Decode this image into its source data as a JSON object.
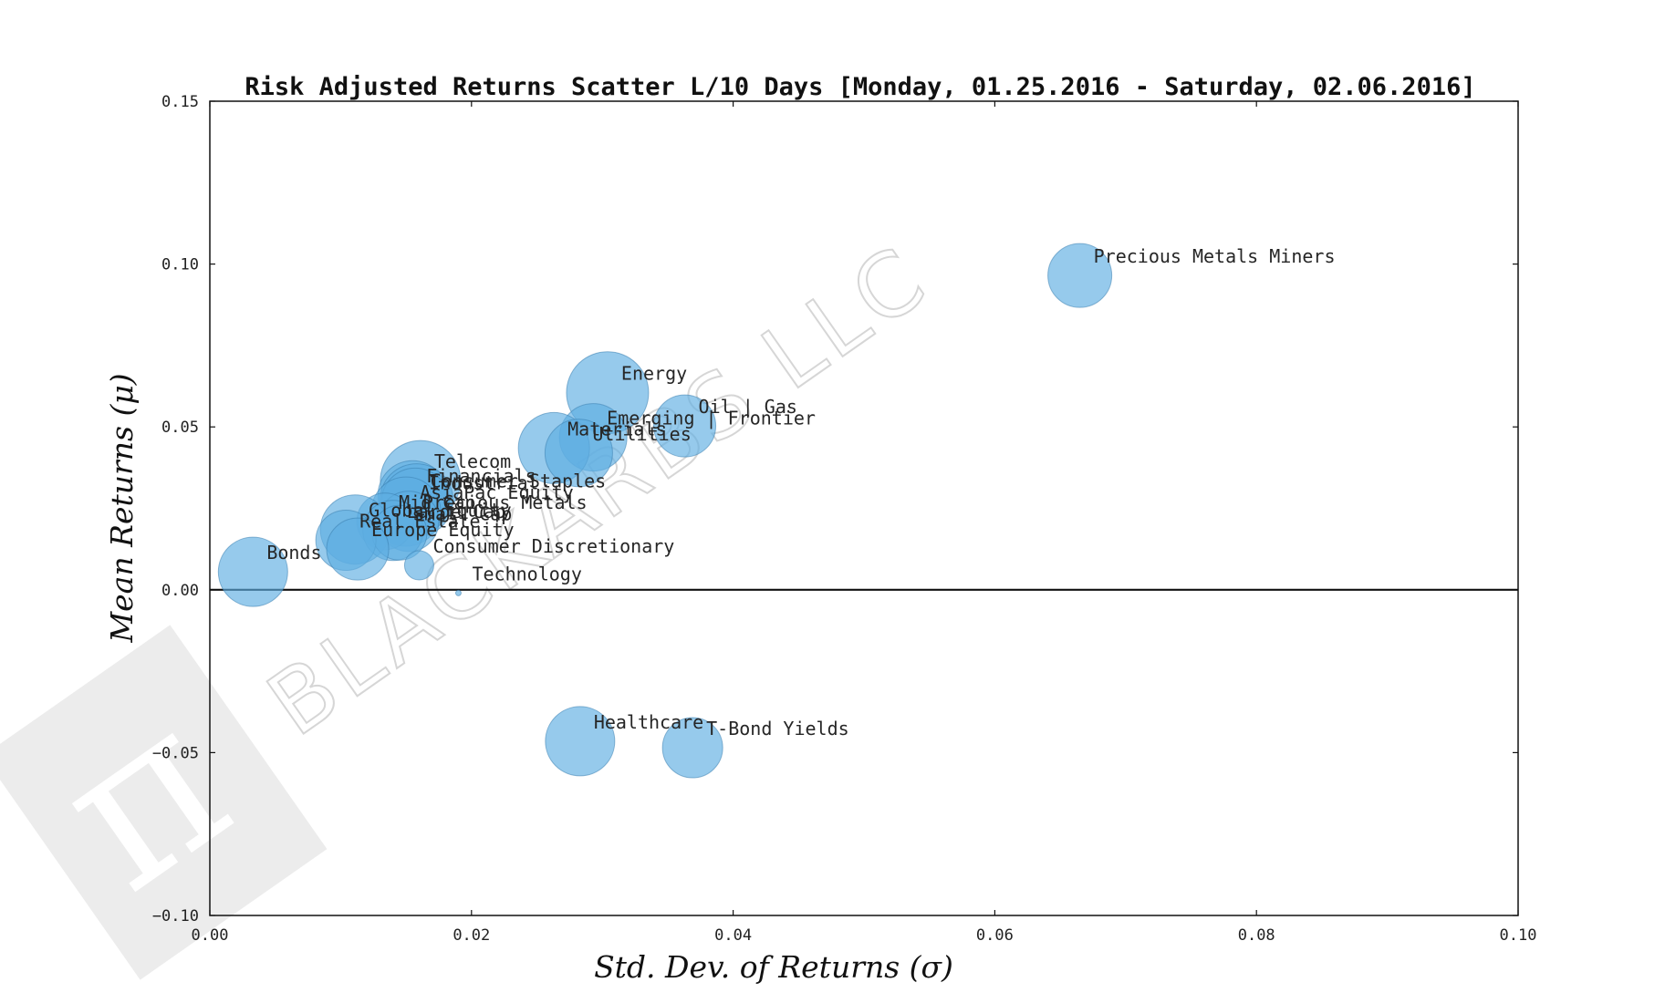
{
  "chart_data": {
    "type": "scatter",
    "title": "Risk Adjusted Returns Scatter L/10 Days [Monday, 01.25.2016 - Saturday, 02.06.2016]",
    "xlabel": "Std.  Dev.  of  Returns     (σ)",
    "ylabel": "Mean  Returns    (μ)",
    "xlim": [
      0.0,
      0.1
    ],
    "ylim": [
      -0.1,
      0.15
    ],
    "x_ticks": [
      "0.00",
      "0.02",
      "0.04",
      "0.06",
      "0.08",
      "0.10"
    ],
    "y_ticks": [
      "−0.10",
      "−0.05",
      "0.00",
      "0.05",
      "0.10",
      "0.15"
    ],
    "grid": false,
    "zero_line": 0.0,
    "marker_color": "#5DADE2",
    "marker_edge_color": "#3a7fb0",
    "watermark": "BLACKARBS LLC",
    "points": [
      {
        "label": "Precious Metals Miners",
        "x": 0.0665,
        "y": 0.0965,
        "size": 0.35
      },
      {
        "label": "Energy",
        "x": 0.0304,
        "y": 0.0605,
        "size": 0.45
      },
      {
        "label": "Oil | Gas",
        "x": 0.0363,
        "y": 0.0503,
        "size": 0.34
      },
      {
        "label": "Emerging | Frontier",
        "x": 0.0293,
        "y": 0.0468,
        "size": 0.37
      },
      {
        "label": "Materials",
        "x": 0.0263,
        "y": 0.0435,
        "size": 0.39
      },
      {
        "label": "Utilities",
        "x": 0.0282,
        "y": 0.042,
        "size": 0.37
      },
      {
        "label": "Telecom",
        "x": 0.0161,
        "y": 0.0335,
        "size": 0.44
      },
      {
        "label": "Financials",
        "x": 0.0155,
        "y": 0.029,
        "size": 0.38
      },
      {
        "label": "Consumer Staples",
        "x": 0.0158,
        "y": 0.0275,
        "size": 0.4
      },
      {
        "label": "Industrial",
        "x": 0.0157,
        "y": 0.027,
        "size": 0.37
      },
      {
        "label": "AsiaPac Equity",
        "x": 0.015,
        "y": 0.024,
        "size": 0.38
      },
      {
        "label": "Precious Metals",
        "x": 0.0152,
        "y": 0.021,
        "size": 0.33
      },
      {
        "label": "Mid Cap",
        "x": 0.0134,
        "y": 0.021,
        "size": 0.31
      },
      {
        "label": "Global Equity",
        "x": 0.0111,
        "y": 0.0185,
        "size": 0.38
      },
      {
        "label": "Large Cap",
        "x": 0.014,
        "y": 0.0182,
        "size": 0.33
      },
      {
        "label": "Small Cap",
        "x": 0.0145,
        "y": 0.0175,
        "size": 0.3
      },
      {
        "label": "Real Estate",
        "x": 0.0104,
        "y": 0.0152,
        "size": 0.33
      },
      {
        "label": "Europe Equity",
        "x": 0.0113,
        "y": 0.0125,
        "size": 0.34
      },
      {
        "label": "Consumer Discretionary",
        "x": 0.016,
        "y": 0.0075,
        "size": 0.16
      },
      {
        "label": "Bonds",
        "x": 0.0033,
        "y": 0.0055,
        "size": 0.38
      },
      {
        "label": "Technology",
        "x": 0.019,
        "y": -0.001,
        "size": 0.02
      },
      {
        "label": "Healthcare",
        "x": 0.0283,
        "y": -0.0465,
        "size": 0.38
      },
      {
        "label": "T-Bond Yields",
        "x": 0.0369,
        "y": -0.0485,
        "size": 0.33
      }
    ]
  }
}
